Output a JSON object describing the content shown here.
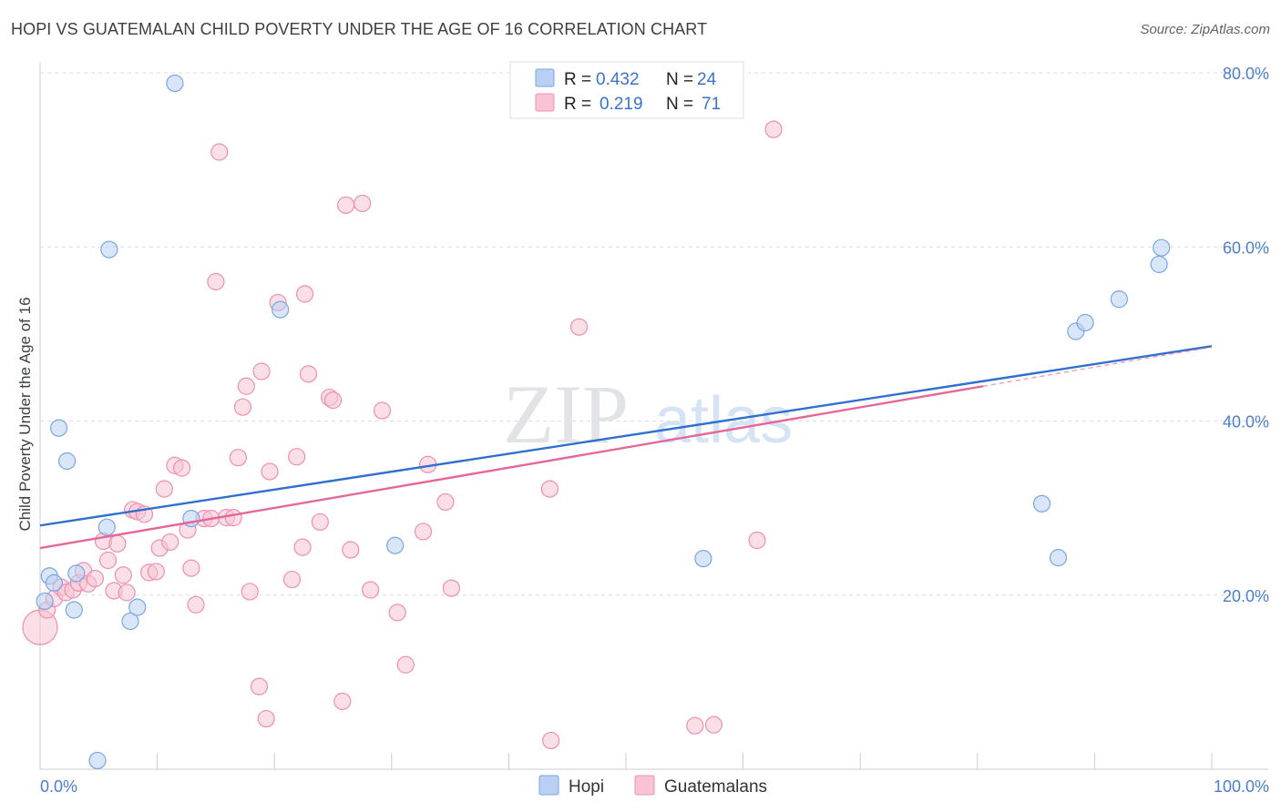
{
  "header": {
    "title": "HOPI VS GUATEMALAN CHILD POVERTY UNDER THE AGE OF 16 CORRELATION CHART",
    "source": "Source: ZipAtlas.com"
  },
  "watermark": {
    "zip": "ZIP",
    "atlas": "atlas"
  },
  "legend": {
    "r_label": "R =",
    "n_label": "N =",
    "series": [
      {
        "name": "Hopi",
        "r": "0.432",
        "n": "24"
      },
      {
        "name": "Guatemalans",
        "r": "0.219",
        "n": "71"
      }
    ]
  },
  "colors": {
    "hopi_fill": "#b9d0f2",
    "hopi_stroke": "#7aa6e2",
    "hopi_line": "#2f6fcf",
    "guat_fill": "#f8c4d4",
    "guat_stroke": "#ee8fb0",
    "guat_line": "#e5679a",
    "grid": "#d9dde3",
    "axis_text": "#4a7fd0"
  },
  "chart_data": {
    "type": "scatter",
    "title": "HOPI VS GUATEMALAN CHILD POVERTY UNDER THE AGE OF 16 CORRELATION CHART",
    "xlabel": "",
    "ylabel": "Child Poverty Under the Age of 16",
    "xlim": [
      0,
      100
    ],
    "ylim": [
      0,
      80
    ],
    "x_tick_labels": [
      "0.0%",
      "100.0%"
    ],
    "y_ticks": [
      20,
      40,
      60,
      80
    ],
    "y_tick_labels": [
      "20.0%",
      "40.0%",
      "60.0%",
      "80.0%"
    ],
    "legend_position": "top-center",
    "series": [
      {
        "name": "Hopi",
        "r": 0.432,
        "n": 24,
        "trend": {
          "x": [
            0,
            100
          ],
          "y": [
            28.0,
            48.6
          ]
        },
        "points": [
          {
            "x": 0.4,
            "y": 19.3
          },
          {
            "x": 0.8,
            "y": 22.2
          },
          {
            "x": 1.2,
            "y": 21.4
          },
          {
            "x": 1.6,
            "y": 39.2
          },
          {
            "x": 2.3,
            "y": 35.4
          },
          {
            "x": 2.9,
            "y": 18.3
          },
          {
            "x": 3.1,
            "y": 22.5
          },
          {
            "x": 4.9,
            "y": 1.0
          },
          {
            "x": 5.7,
            "y": 27.8
          },
          {
            "x": 5.9,
            "y": 59.7
          },
          {
            "x": 7.7,
            "y": 17.0
          },
          {
            "x": 8.3,
            "y": 18.6
          },
          {
            "x": 11.5,
            "y": 78.8
          },
          {
            "x": 12.9,
            "y": 28.8
          },
          {
            "x": 20.5,
            "y": 52.8
          },
          {
            "x": 30.3,
            "y": 25.7
          },
          {
            "x": 56.6,
            "y": 24.2
          },
          {
            "x": 85.5,
            "y": 30.5
          },
          {
            "x": 86.9,
            "y": 24.3
          },
          {
            "x": 88.4,
            "y": 50.3
          },
          {
            "x": 89.2,
            "y": 51.3
          },
          {
            "x": 92.1,
            "y": 54.0
          },
          {
            "x": 95.5,
            "y": 58.0
          },
          {
            "x": 95.7,
            "y": 59.9
          }
        ]
      },
      {
        "name": "Guatemalans",
        "r": 0.219,
        "n": 71,
        "trend": {
          "x": [
            0,
            80.5
          ],
          "y": [
            25.4,
            44.0
          ]
        },
        "trend_dashed": {
          "x": [
            80.5,
            100
          ],
          "y": [
            44.0,
            48.5
          ]
        },
        "points": [
          {
            "x": 0.0,
            "y": 16.3
          },
          {
            "x": 0.6,
            "y": 18.3
          },
          {
            "x": 1.2,
            "y": 19.6
          },
          {
            "x": 1.8,
            "y": 20.9
          },
          {
            "x": 2.2,
            "y": 20.3
          },
          {
            "x": 2.8,
            "y": 20.6
          },
          {
            "x": 3.3,
            "y": 21.4
          },
          {
            "x": 3.7,
            "y": 22.8
          },
          {
            "x": 4.1,
            "y": 21.3
          },
          {
            "x": 4.7,
            "y": 21.9
          },
          {
            "x": 5.4,
            "y": 26.2
          },
          {
            "x": 5.8,
            "y": 24.0
          },
          {
            "x": 6.3,
            "y": 20.5
          },
          {
            "x": 6.6,
            "y": 25.9
          },
          {
            "x": 7.1,
            "y": 22.3
          },
          {
            "x": 7.4,
            "y": 20.3
          },
          {
            "x": 7.9,
            "y": 29.8
          },
          {
            "x": 8.3,
            "y": 29.6
          },
          {
            "x": 8.9,
            "y": 29.3
          },
          {
            "x": 9.3,
            "y": 22.6
          },
          {
            "x": 9.9,
            "y": 22.7
          },
          {
            "x": 10.2,
            "y": 25.4
          },
          {
            "x": 10.6,
            "y": 32.2
          },
          {
            "x": 11.1,
            "y": 26.1
          },
          {
            "x": 11.5,
            "y": 34.9
          },
          {
            "x": 12.1,
            "y": 34.6
          },
          {
            "x": 12.6,
            "y": 27.5
          },
          {
            "x": 12.9,
            "y": 23.1
          },
          {
            "x": 13.3,
            "y": 18.9
          },
          {
            "x": 14.0,
            "y": 28.8
          },
          {
            "x": 14.6,
            "y": 28.8
          },
          {
            "x": 15.0,
            "y": 56.0
          },
          {
            "x": 15.3,
            "y": 70.9
          },
          {
            "x": 15.9,
            "y": 28.9
          },
          {
            "x": 16.5,
            "y": 28.9
          },
          {
            "x": 16.9,
            "y": 35.8
          },
          {
            "x": 17.3,
            "y": 41.6
          },
          {
            "x": 17.6,
            "y": 44.0
          },
          {
            "x": 17.9,
            "y": 20.4
          },
          {
            "x": 18.7,
            "y": 9.5
          },
          {
            "x": 18.9,
            "y": 45.7
          },
          {
            "x": 19.3,
            "y": 5.8
          },
          {
            "x": 19.6,
            "y": 34.2
          },
          {
            "x": 20.3,
            "y": 53.6
          },
          {
            "x": 21.5,
            "y": 21.8
          },
          {
            "x": 21.9,
            "y": 35.9
          },
          {
            "x": 22.4,
            "y": 25.5
          },
          {
            "x": 22.6,
            "y": 54.6
          },
          {
            "x": 22.9,
            "y": 45.4
          },
          {
            "x": 23.9,
            "y": 28.4
          },
          {
            "x": 24.7,
            "y": 42.7
          },
          {
            "x": 25.0,
            "y": 42.4
          },
          {
            "x": 25.8,
            "y": 7.8
          },
          {
            "x": 26.1,
            "y": 64.8
          },
          {
            "x": 26.5,
            "y": 25.2
          },
          {
            "x": 27.5,
            "y": 65.0
          },
          {
            "x": 28.2,
            "y": 20.6
          },
          {
            "x": 29.2,
            "y": 41.2
          },
          {
            "x": 30.5,
            "y": 18.0
          },
          {
            "x": 31.2,
            "y": 12.0
          },
          {
            "x": 32.7,
            "y": 27.3
          },
          {
            "x": 33.1,
            "y": 35.0
          },
          {
            "x": 34.6,
            "y": 30.7
          },
          {
            "x": 35.1,
            "y": 20.8
          },
          {
            "x": 43.5,
            "y": 32.2
          },
          {
            "x": 43.6,
            "y": 3.3
          },
          {
            "x": 46.0,
            "y": 50.8
          },
          {
            "x": 55.9,
            "y": 5.0
          },
          {
            "x": 57.5,
            "y": 5.1
          },
          {
            "x": 61.2,
            "y": 26.3
          },
          {
            "x": 62.6,
            "y": 73.5
          }
        ]
      }
    ]
  }
}
